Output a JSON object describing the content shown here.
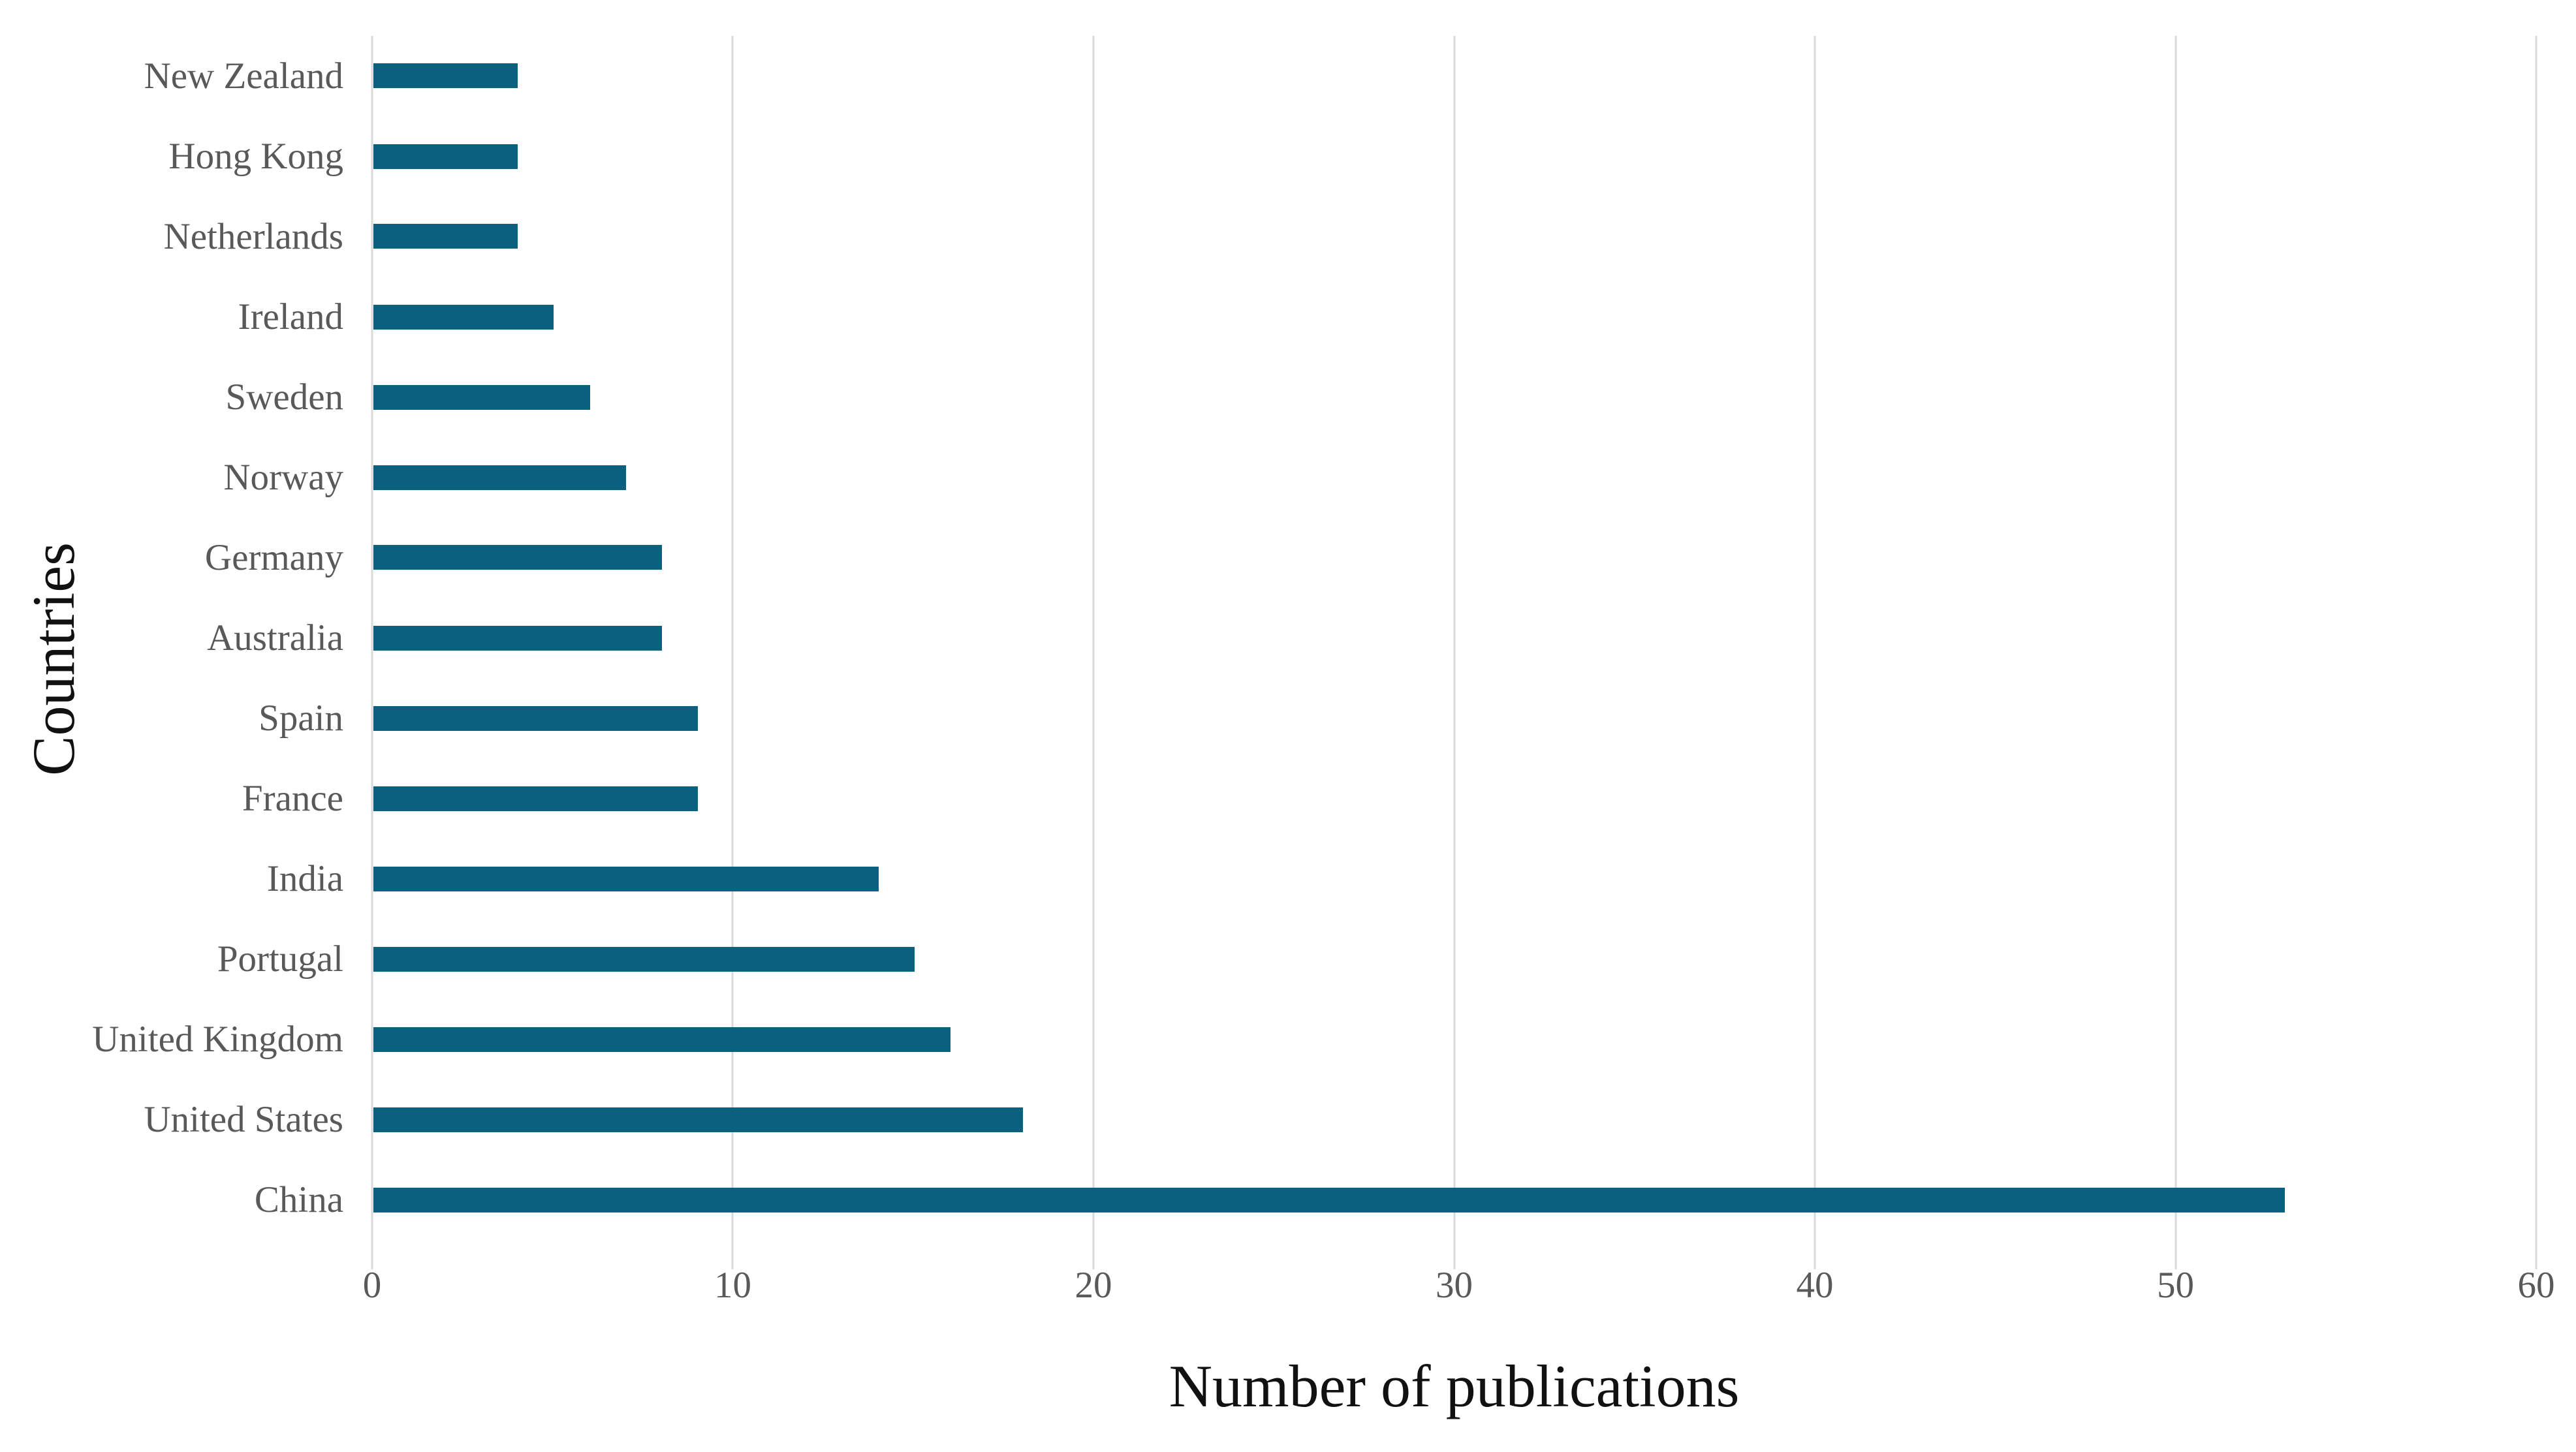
{
  "chart_data": {
    "type": "bar",
    "orientation": "horizontal",
    "title": "",
    "xlabel": "Number of publications",
    "ylabel": "Countries",
    "categories": [
      "New Zealand",
      "Hong Kong",
      "Netherlands",
      "Ireland",
      "Sweden",
      "Norway",
      "Germany",
      "Australia",
      "Spain",
      "France",
      "India",
      "Portugal",
      "United Kingdom",
      "United States",
      "China"
    ],
    "values": [
      4,
      4,
      4,
      5,
      6,
      7,
      8,
      8,
      9,
      9,
      14,
      15,
      16,
      18,
      53
    ],
    "xlim": [
      0,
      60
    ],
    "xticks": [
      0,
      10,
      20,
      30,
      40,
      50,
      60
    ],
    "grid": "vertical-gridlines-on",
    "legend": "none",
    "colors": {
      "bar": "#0B6080",
      "gridline": "#D9D9D9",
      "tick_label": "#595959",
      "category_label": "#595959",
      "axis_title": "#111111",
      "background": "#FFFFFF"
    }
  }
}
